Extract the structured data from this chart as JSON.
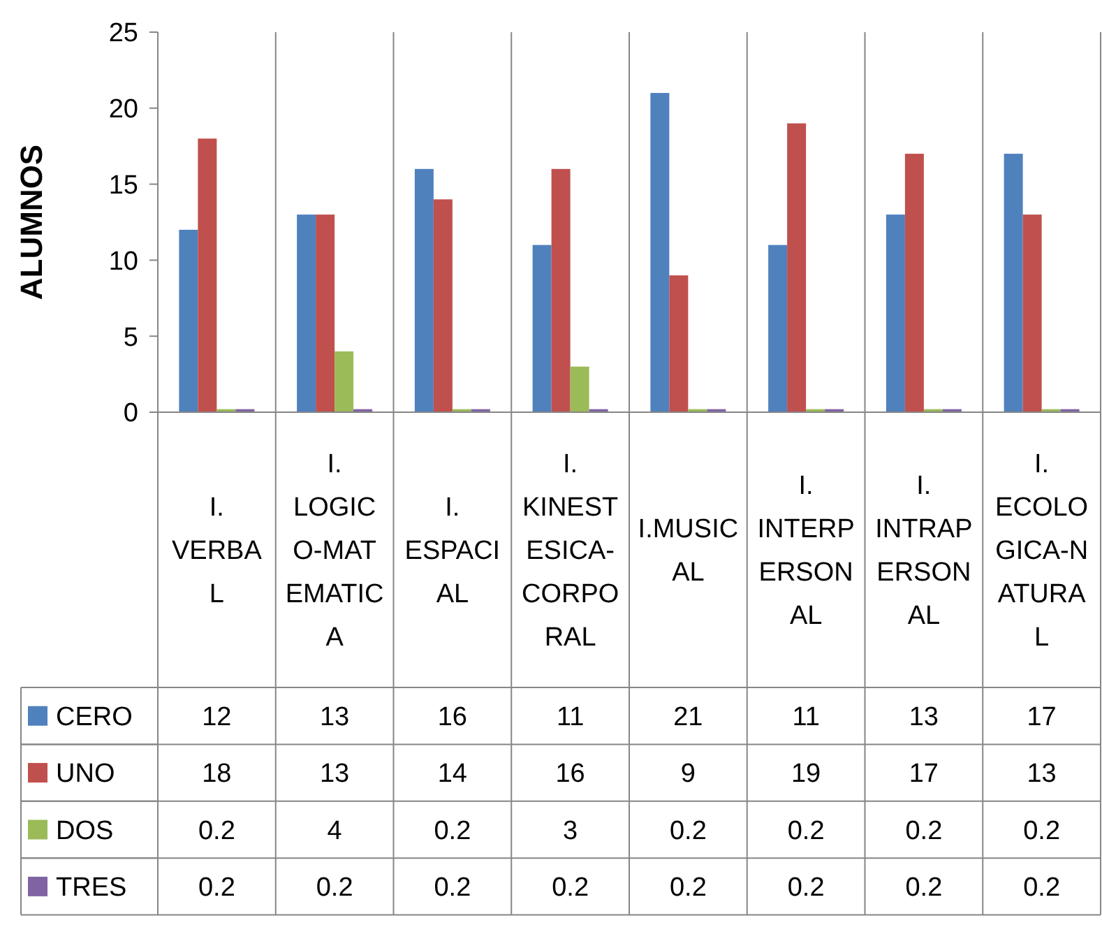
{
  "chart_data": {
    "type": "bar",
    "ylabel": "ALUMNOS",
    "categories": [
      "I. VERBAL",
      "I. LOGICO-MATEMATICA",
      "I. ESPACIAL",
      "I. KINESTESICA-CORPORAL",
      "I.MUSICAL",
      "I. INTERPERSONAL",
      "I. INTRAPERSONAL",
      "I. ECOLOGICA-NATURAL"
    ],
    "series": [
      {
        "name": "CERO",
        "color": "#4f81bd",
        "values": [
          12,
          13,
          16,
          11,
          21,
          11,
          13,
          17
        ]
      },
      {
        "name": "UNO",
        "color": "#c0504d",
        "values": [
          18,
          13,
          14,
          16,
          9,
          19,
          17,
          13
        ]
      },
      {
        "name": "DOS",
        "color": "#9bbb59",
        "values": [
          0.2,
          4,
          0.2,
          3,
          0.2,
          0.2,
          0.2,
          0.2
        ]
      },
      {
        "name": "TRES",
        "color": "#8064a2",
        "values": [
          0.2,
          0.2,
          0.2,
          0.2,
          0.2,
          0.2,
          0.2,
          0.2
        ]
      }
    ],
    "ylim": [
      0,
      25
    ],
    "yticks": [
      0,
      5,
      10,
      15,
      20,
      25
    ],
    "data_labels": true,
    "legend": "bottom",
    "grid": false
  }
}
